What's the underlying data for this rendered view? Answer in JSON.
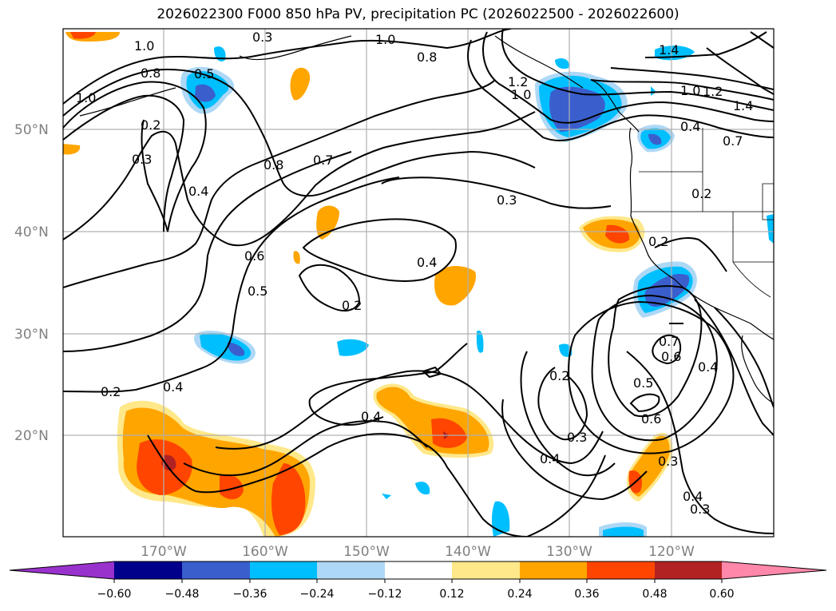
{
  "title": "2026022300 F000 850 hPa PV, precipitation PC (2026022500 - 2026022600)",
  "lat_labels": [
    "50°N",
    "40°N",
    "30°N",
    "20°N"
  ],
  "lon_labels": [
    "170°W",
    "160°W",
    "150°W",
    "140°W",
    "130°W",
    "120°W"
  ],
  "colorbar": {
    "ticks": [
      "−0.60",
      "−0.48",
      "−0.36",
      "−0.24",
      "−0.12",
      "0.12",
      "0.24",
      "0.36",
      "0.48",
      "0.60"
    ],
    "colors": [
      "#9932cc",
      "#00008b",
      "#3a5fcd",
      "#00bfff",
      "#add8f6",
      "#ffffff",
      "#ffe88a",
      "#ffa500",
      "#ff4500",
      "#b22222",
      "#ff88aa"
    ]
  },
  "contour_labels": [
    "1.0",
    "0.8",
    "0.5",
    "1.0",
    "0.2",
    "0.3",
    "1.0",
    "0.8",
    "1.2",
    "1.0",
    "1.4",
    "1.0",
    "1.2",
    "1.4",
    "0.4",
    "0.7",
    "0.4",
    "0.8",
    "0.7",
    "0.3",
    "0.2",
    "0.2",
    "0.6",
    "0.5",
    "0.4",
    "0.2",
    "0.7",
    "0.6",
    "0.4",
    "0.2",
    "0.4",
    "0.2",
    "0.5",
    "0.6",
    "0.3",
    "0.4",
    "0.3",
    "0.3",
    "0.4",
    "0.3",
    "0.4"
  ]
}
